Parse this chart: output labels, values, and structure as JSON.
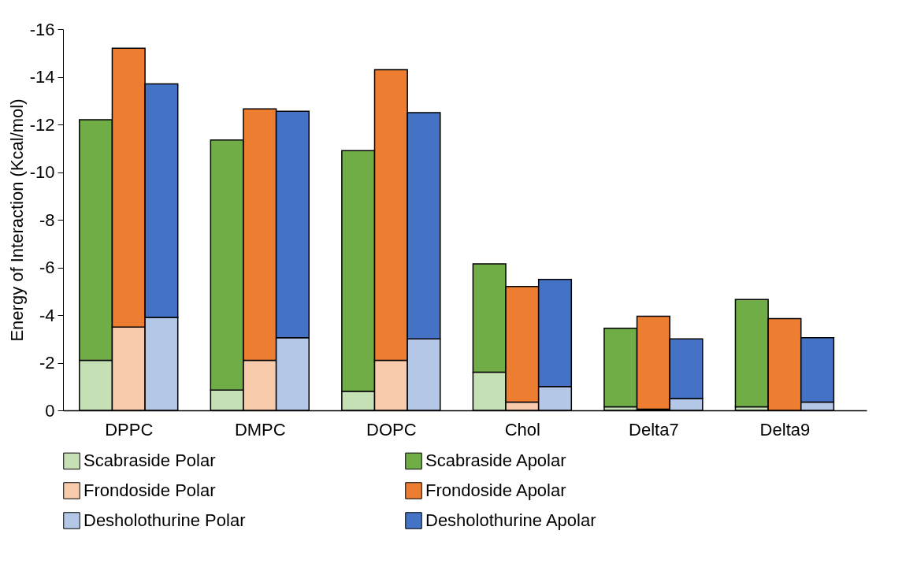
{
  "chart_data": {
    "type": "bar",
    "stacked": true,
    "ylabel": "Energy of Interaction (Kcal/mol)",
    "categories": [
      null,
      "DPPC",
      null,
      null,
      "DMPC",
      null,
      null,
      "DOPC",
      null,
      null,
      "Chol",
      null,
      null,
      "Delta7",
      null,
      null,
      "Delta9",
      null
    ],
    "series": [
      {
        "name": "Scabraside Polar",
        "color": "#c5e0b4",
        "values": [
          -2.1,
          null,
          null,
          -0.85,
          null,
          null,
          -0.8,
          null,
          null,
          -1.6,
          null,
          null,
          -0.15,
          null,
          null,
          -0.15,
          null,
          null
        ]
      },
      {
        "name": "Scabraside Apolar",
        "color": "#70ad47",
        "values": [
          -10.1,
          null,
          null,
          -10.5,
          null,
          null,
          -10.1,
          null,
          null,
          -4.55,
          null,
          null,
          -3.3,
          null,
          null,
          -4.5,
          null,
          null
        ]
      },
      {
        "name": "Frondoside Polar",
        "color": "#f8cbad",
        "values": [
          null,
          -3.5,
          null,
          null,
          -2.1,
          null,
          null,
          -2.1,
          null,
          null,
          -0.35,
          null,
          null,
          -0.05,
          null,
          null,
          null,
          null
        ]
      },
      {
        "name": "Frondoside Apolar",
        "color": "#ed7d31",
        "values": [
          null,
          -11.7,
          null,
          null,
          -10.55,
          null,
          null,
          -12.2,
          null,
          null,
          -4.85,
          null,
          null,
          -3.9,
          null,
          null,
          -3.85,
          null
        ]
      },
      {
        "name": "Desholothurine Polar",
        "color": "#b4c7e7",
        "values": [
          null,
          null,
          -3.9,
          null,
          null,
          -3.05,
          null,
          null,
          -3.0,
          null,
          null,
          -1.0,
          null,
          null,
          -0.5,
          null,
          null,
          -0.35
        ]
      },
      {
        "name": "Desholothurine Apolar",
        "color": "#4472c4",
        "values": [
          null,
          null,
          -9.8,
          null,
          null,
          -9.5,
          null,
          null,
          -9.5,
          null,
          null,
          -4.5,
          null,
          null,
          -2.5,
          null,
          null,
          -2.7
        ]
      }
    ],
    "ylim": [
      0,
      -16
    ],
    "yticks": [
      0,
      -2,
      -4,
      -6,
      -8,
      -10,
      -12,
      -14,
      -16
    ],
    "grid": false,
    "legend": "bottom"
  }
}
